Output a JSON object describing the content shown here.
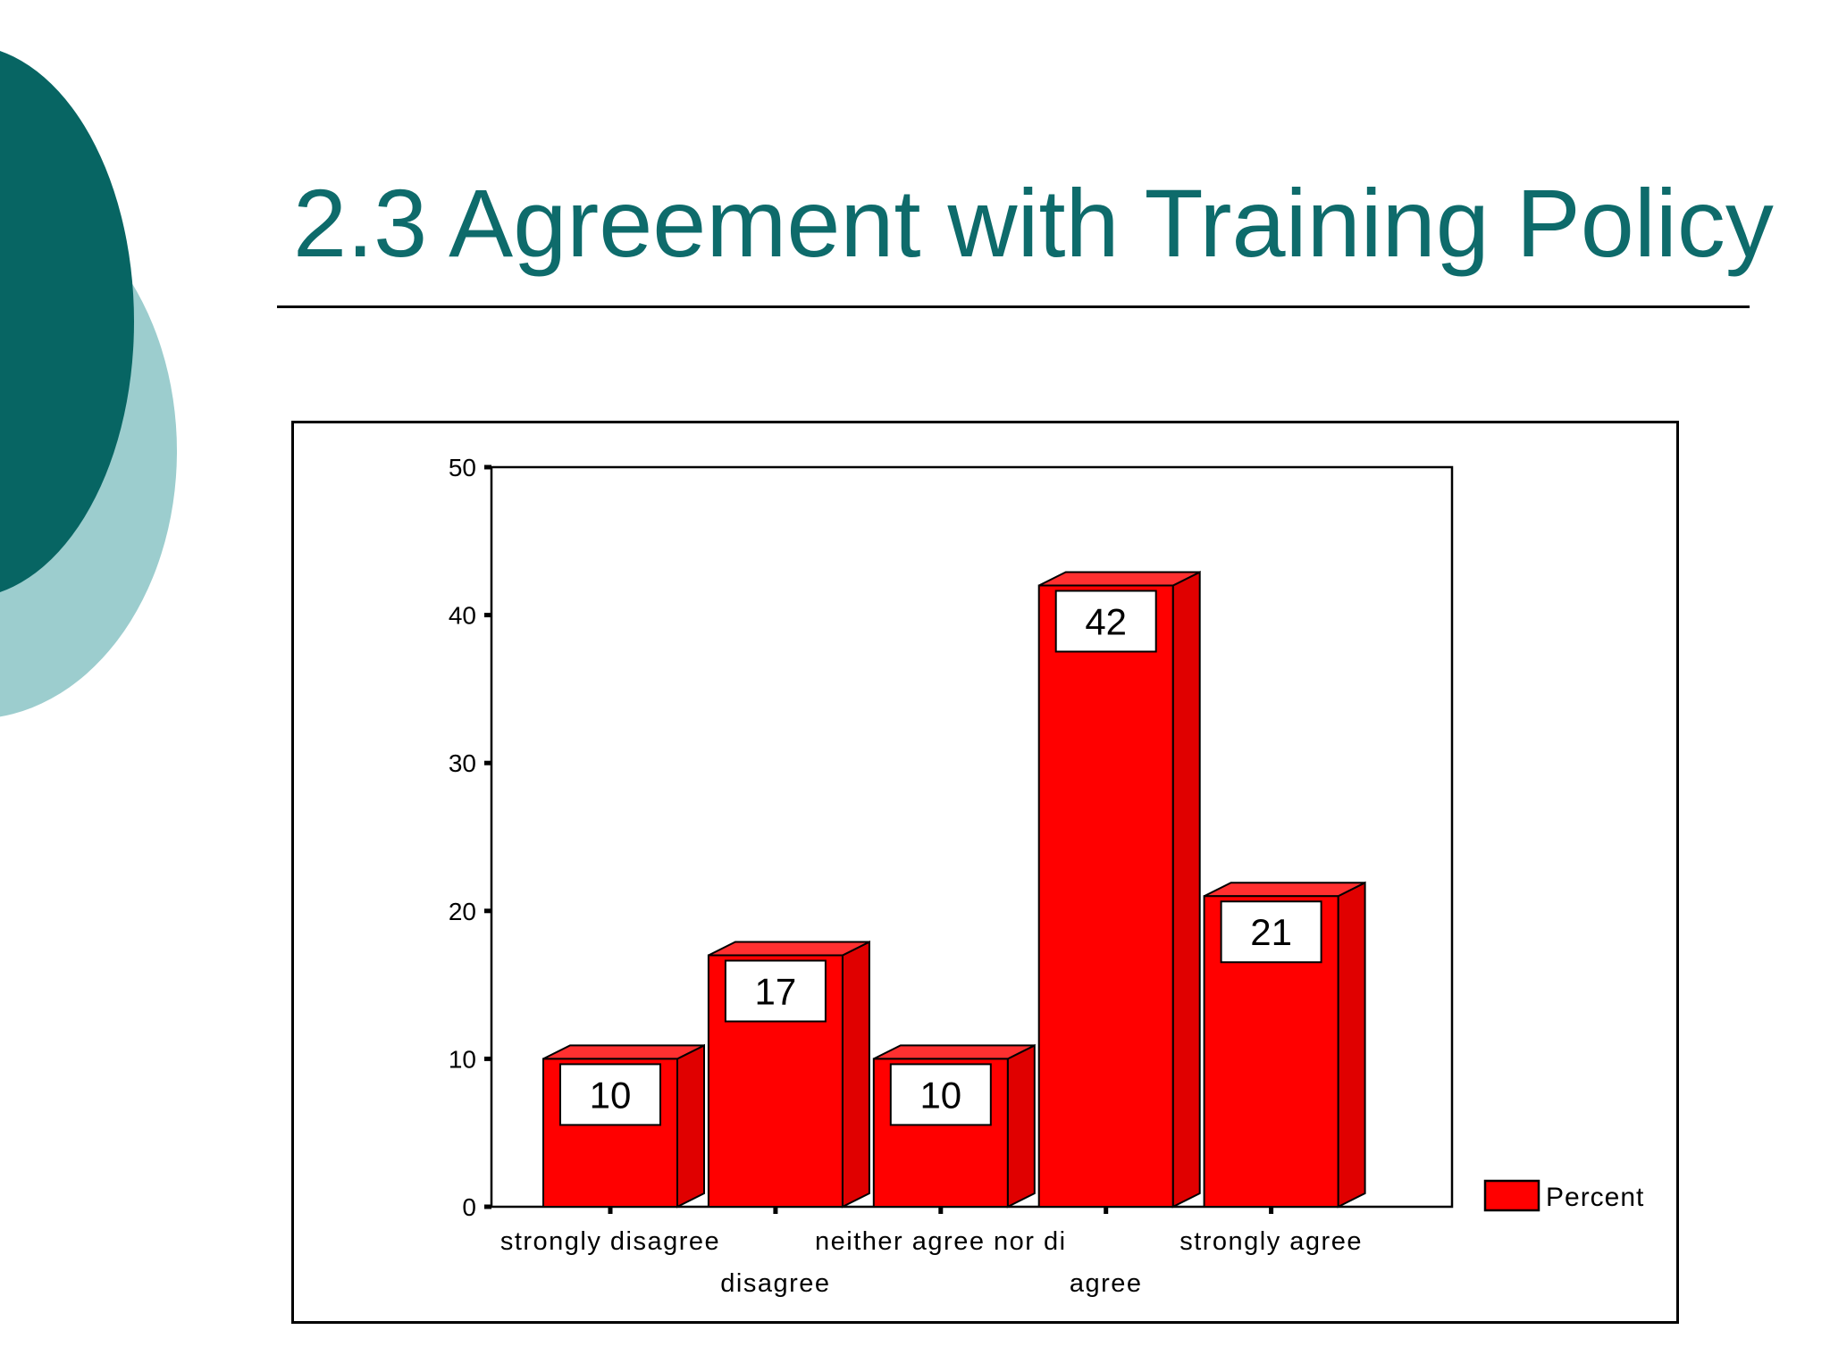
{
  "slide": {
    "title": "2.3 Agreement with Training Policy"
  },
  "colors": {
    "title": "#0e6b6b",
    "deco_dark": "#076563",
    "deco_light": "#9ccdce",
    "bar_front": "#ff0000",
    "bar_side": "#e00000",
    "bar_top": "#ff3030"
  },
  "chart_data": {
    "type": "bar",
    "title": "",
    "xlabel": "",
    "ylabel": "",
    "ylim": [
      0,
      50
    ],
    "yticks": [
      0,
      10,
      20,
      30,
      40,
      50
    ],
    "categories": [
      [
        "strongly disagree"
      ],
      [
        "disagree"
      ],
      [
        "neither agree nor di"
      ],
      [
        "agree"
      ],
      [
        "strongly agree"
      ]
    ],
    "category_label_rows": [
      0,
      1,
      0,
      1,
      0
    ],
    "series": [
      {
        "name": "Percent",
        "values": [
          10,
          17,
          10,
          42,
          21
        ]
      }
    ],
    "data_labels": [
      "10",
      "17",
      "10",
      "42",
      "21"
    ],
    "legend": "right",
    "grid": false,
    "style": "3d"
  }
}
